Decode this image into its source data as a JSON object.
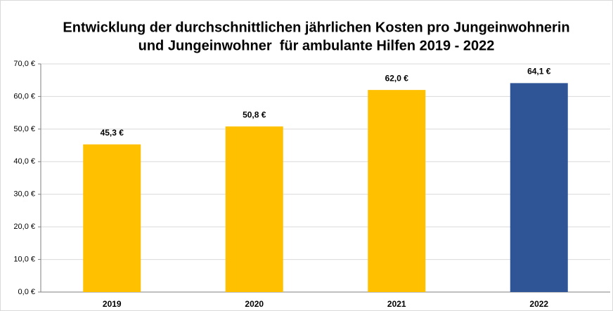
{
  "chart_data": {
    "type": "bar",
    "title": [
      "Entwicklung der durchschnittlichen jährlichen Kosten pro Jungeinwohnerin",
      "und Jungeinwohner  für ambulante Hilfen 2019 - 2022"
    ],
    "categories": [
      "2019",
      "2020",
      "2021",
      "2022"
    ],
    "values": [
      45.3,
      50.8,
      62.0,
      64.1
    ],
    "value_labels": [
      "45,3 €",
      "50,8 €",
      "62,0 €",
      "64,1 €"
    ],
    "colors": [
      "#ffc000",
      "#ffc000",
      "#ffc000",
      "#2f5597"
    ],
    "ylim": [
      0,
      70
    ],
    "yticks": [
      {
        "value": 0,
        "label": "0,0 €"
      },
      {
        "value": 10,
        "label": "10,0 €"
      },
      {
        "value": 20,
        "label": "20,0 €"
      },
      {
        "value": 30,
        "label": "30,0 €"
      },
      {
        "value": 40,
        "label": "40,0 €"
      },
      {
        "value": 50,
        "label": "50,0 €"
      },
      {
        "value": 60,
        "label": "60,0 €"
      },
      {
        "value": 70,
        "label": "70,0 €"
      }
    ],
    "grid": true
  }
}
